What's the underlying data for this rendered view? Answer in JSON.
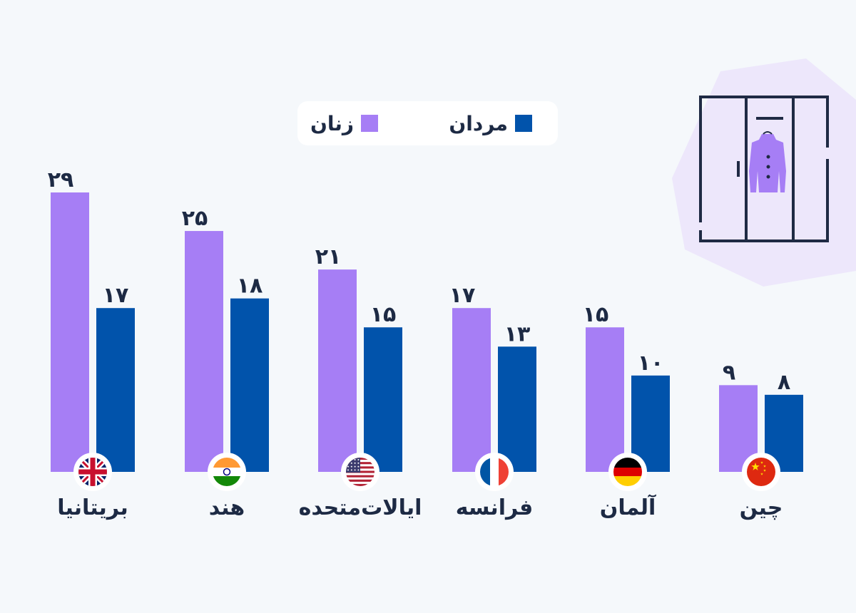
{
  "legend": {
    "women_label": "زنان",
    "men_label": "مردان"
  },
  "colors": {
    "women": "#a67ef5",
    "men": "#0153ab",
    "value_text": "#1d2a44",
    "background": "#f5f8fb",
    "decor_blob": "#ede7fb"
  },
  "decor": {
    "icon": "wardrobe-icon"
  },
  "chart_data": {
    "type": "bar",
    "categories": [
      "بریتانیا",
      "هند",
      "ایالات‌متحده",
      "فرانسه",
      "آلمان",
      "چین"
    ],
    "category_flags": [
      "uk-flag-icon",
      "india-flag-icon",
      "usa-flag-icon",
      "france-flag-icon",
      "germany-flag-icon",
      "china-flag-icon"
    ],
    "series": [
      {
        "name": "زنان",
        "values": [
          29,
          25,
          21,
          17,
          15,
          9
        ],
        "value_labels": [
          "۲۹",
          "۲۵",
          "۲۱",
          "۱۷",
          "۱۵",
          "۹"
        ]
      },
      {
        "name": "مردان",
        "values": [
          17,
          18,
          15,
          13,
          10,
          8
        ],
        "value_labels": [
          "۱۷",
          "۱۸",
          "۱۵",
          "۱۳",
          "۱۰",
          "۸"
        ]
      }
    ],
    "ylim": [
      0,
      29
    ],
    "grid": false,
    "legend_position": "top-center"
  }
}
